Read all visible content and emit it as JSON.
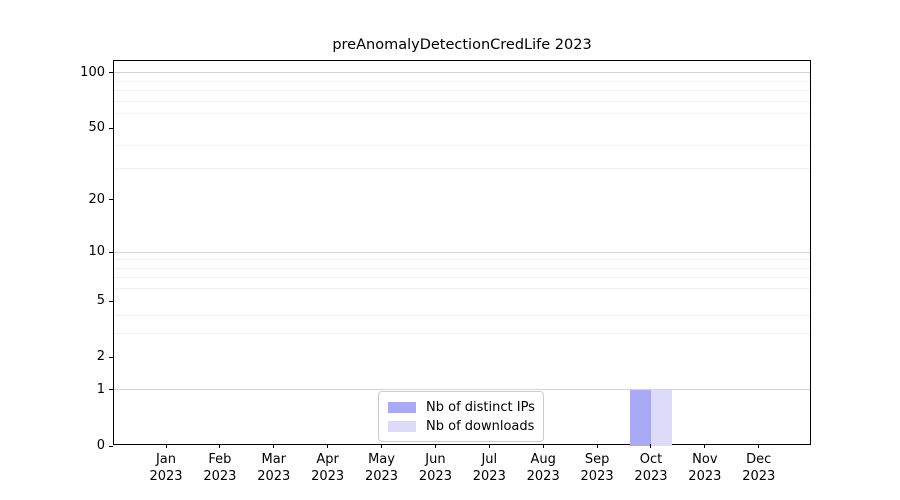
{
  "chart_data": {
    "type": "bar",
    "title": "preAnomalyDetectionCredLife 2023",
    "categories": [
      "Jan 2023",
      "Feb 2023",
      "Mar 2023",
      "Apr 2023",
      "May 2023",
      "Jun 2023",
      "Jul 2023",
      "Aug 2023",
      "Sep 2023",
      "Oct 2023",
      "Nov 2023",
      "Dec 2023"
    ],
    "series": [
      {
        "name": "Nb of distinct IPs",
        "color": "#a9a9f5",
        "values": [
          0,
          0,
          0,
          0,
          0,
          0,
          0,
          0,
          0,
          1,
          0,
          0
        ]
      },
      {
        "name": "Nb of downloads",
        "color": "#dcdcfa",
        "values": [
          0,
          0,
          0,
          0,
          0,
          0,
          0,
          0,
          0,
          1,
          0,
          0
        ]
      }
    ],
    "xlabel": "",
    "ylabel": "",
    "y_axis": {
      "scale": "log1p",
      "ylim": [
        0,
        116
      ],
      "labeled_ticks": [
        0,
        1,
        2,
        5,
        10,
        20,
        50,
        100
      ],
      "major_gridlines": [
        1,
        10,
        100
      ],
      "minor_gridlines": [
        3,
        4,
        6,
        7,
        8,
        9,
        30,
        40,
        60,
        70,
        80,
        90
      ]
    },
    "grid": true,
    "legend": {
      "position": "lower center",
      "entries": [
        "Nb of distinct IPs",
        "Nb of downloads"
      ]
    }
  },
  "colors": {
    "axis": "#000000",
    "major_grid": "#d3d3d3",
    "minor_grid": "#efefef",
    "legend_border": "#cccccc",
    "bar_distinct_ips": "#a9a9f5",
    "bar_downloads": "#dcdcfa"
  }
}
